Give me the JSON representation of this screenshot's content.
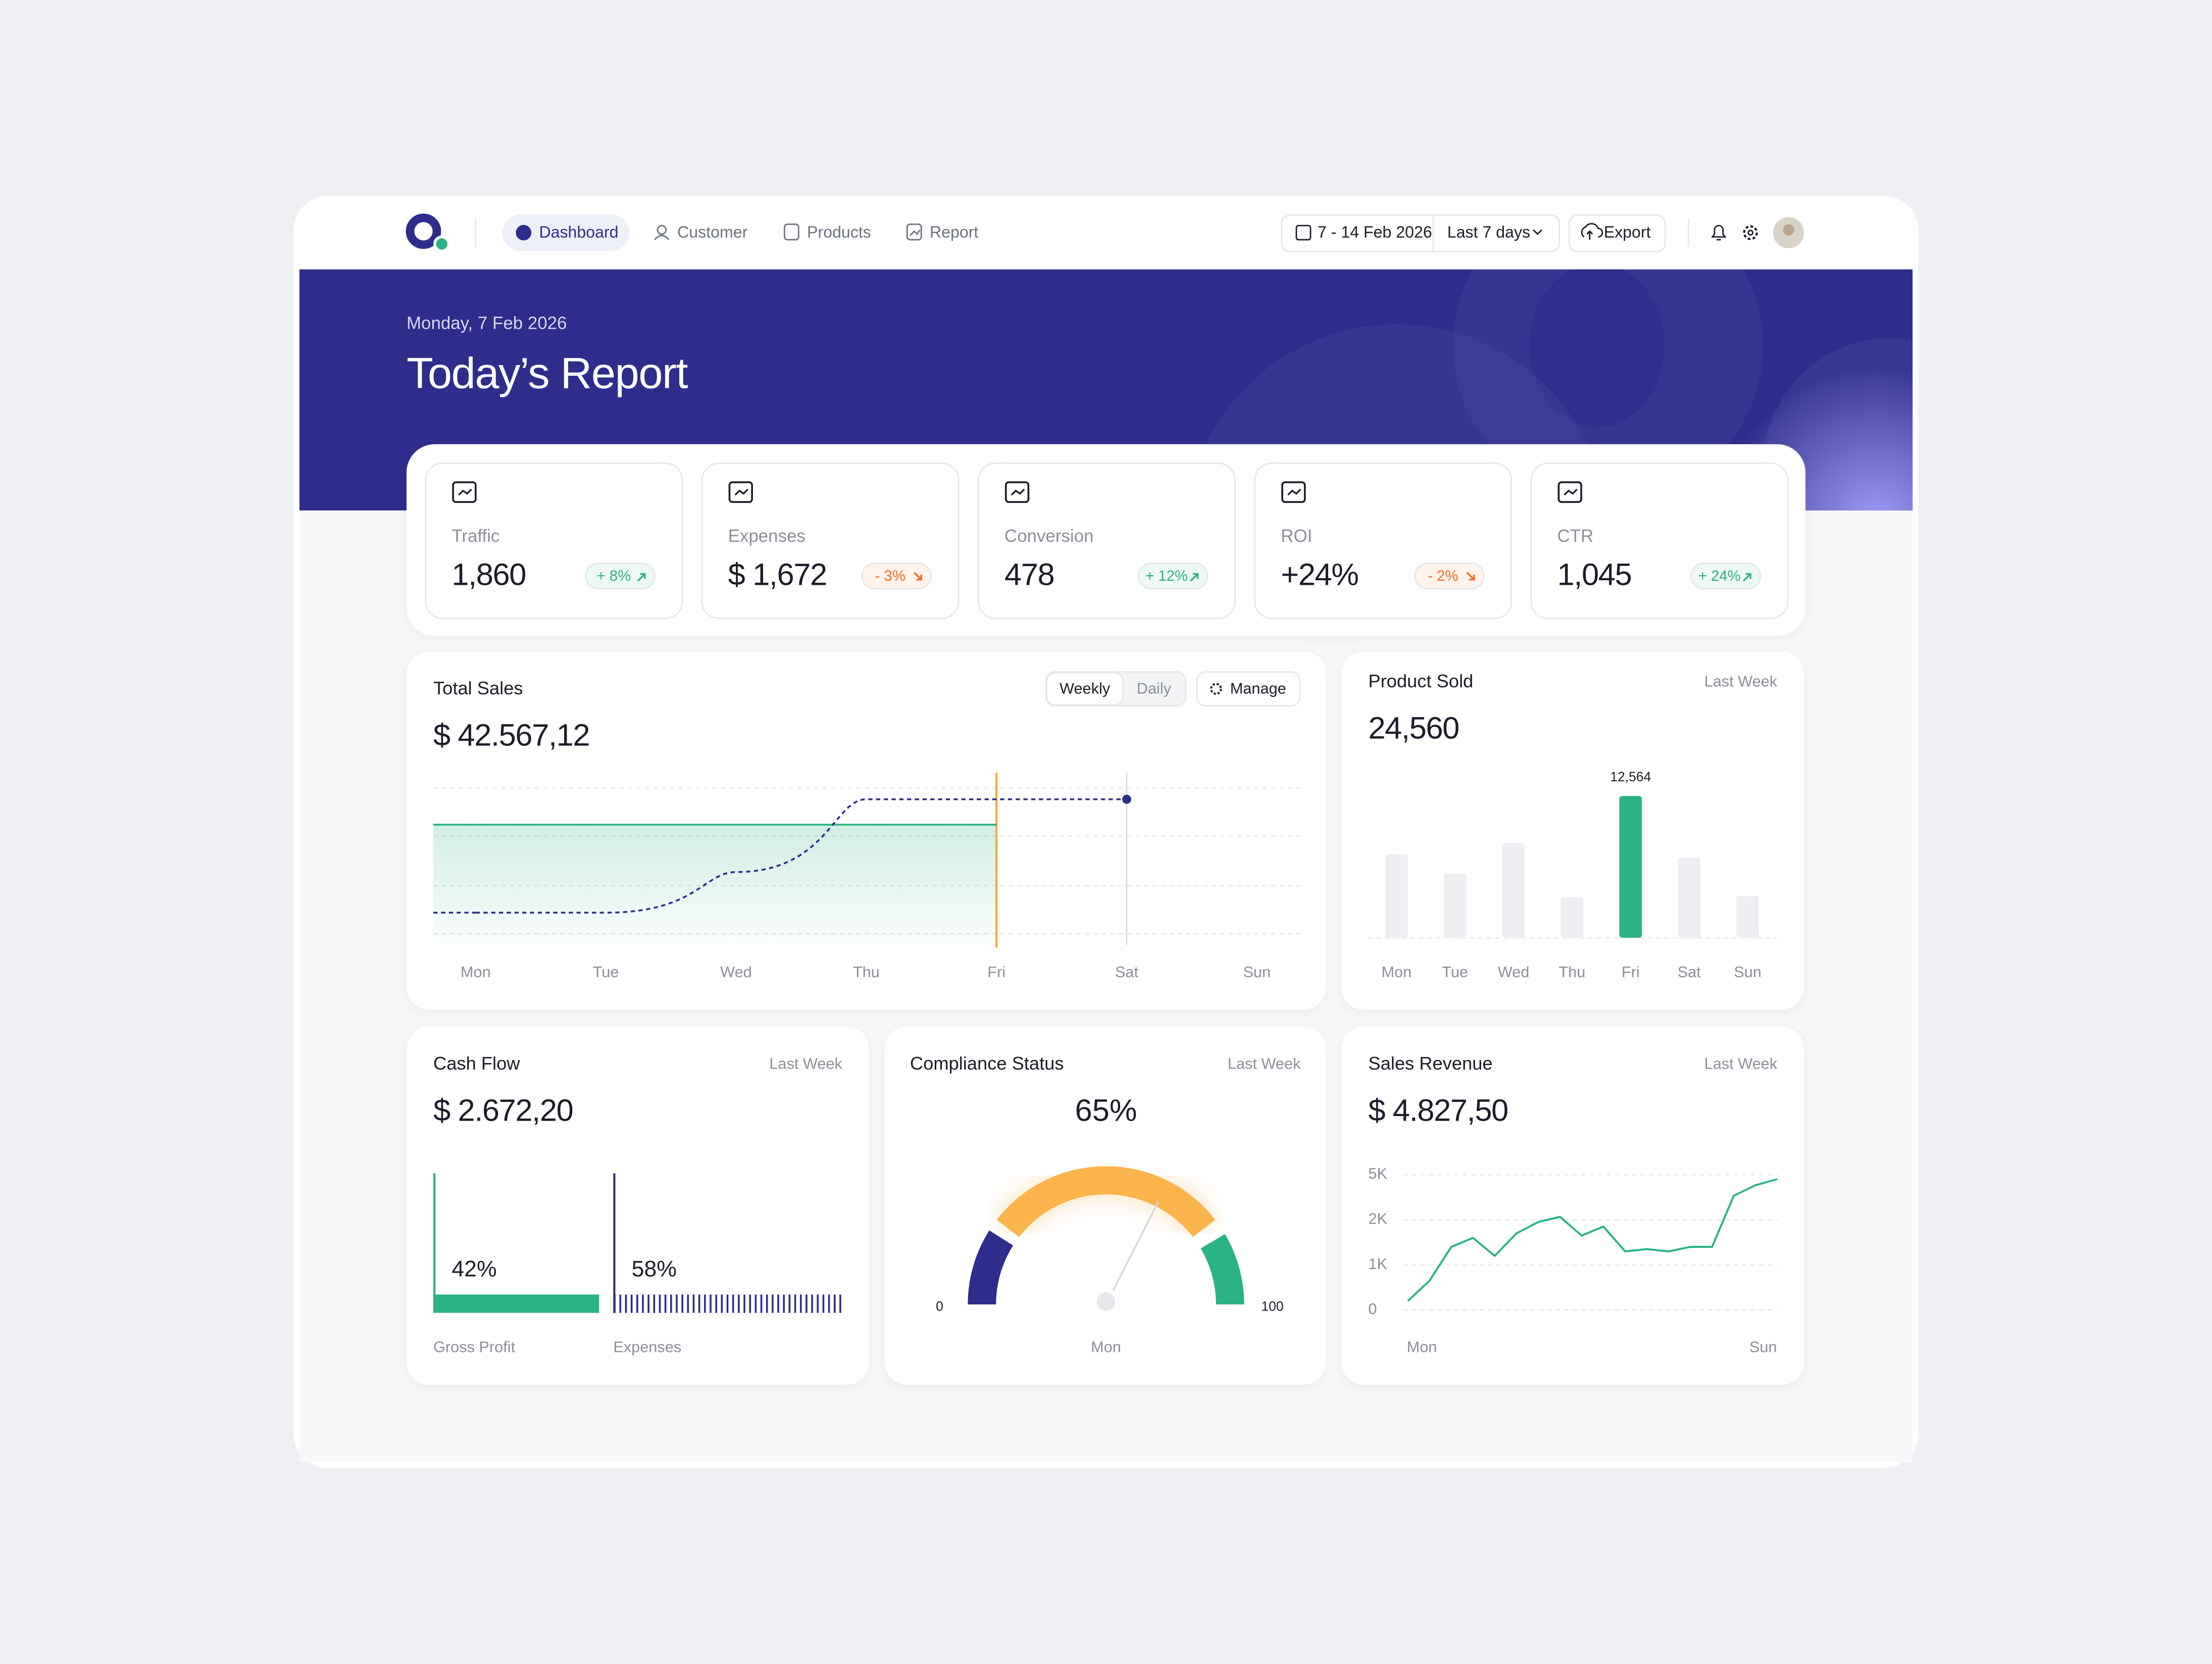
{
  "nav": {
    "items": [
      "Dashboard",
      "Customer",
      "Products",
      "Report"
    ],
    "date_range": "7 - 14 Feb 2026",
    "period": "Last 7 days",
    "export": "Export"
  },
  "header": {
    "date": "Monday, 7 Feb 2026",
    "title": "Today’s Report"
  },
  "kpis": [
    {
      "label": "Traffic",
      "value": "1,860",
      "change": "+ 8%",
      "trend": "up"
    },
    {
      "label": "Expenses",
      "value": "$ 1,672",
      "change": "- 3%",
      "trend": "down"
    },
    {
      "label": "Conversion",
      "value": "478",
      "change": "+ 12%",
      "trend": "up"
    },
    {
      "label": "ROI",
      "value": "+24%",
      "change": "- 2%",
      "trend": "down"
    },
    {
      "label": "CTR",
      "value": "1,045",
      "change": "+ 24%",
      "trend": "up"
    }
  ],
  "total_sales": {
    "title": "Total Sales",
    "value": "$ 42.567,12",
    "tabs": [
      "Weekly",
      "Daily"
    ],
    "manage": "Manage",
    "chart": {
      "type": "line",
      "categories": [
        "Mon",
        "Tue",
        "Wed",
        "Thu",
        "Fri",
        "Sat",
        "Sun"
      ],
      "ylim": [
        0,
        100
      ],
      "series": [
        {
          "color": "#2bb383",
          "values": [
            71,
            71,
            71,
            71,
            71,
            null,
            null
          ],
          "area": true,
          "curve": "linear",
          "style": "solid"
        },
        {
          "color": "#2e2d8c",
          "values": [
            19,
            19,
            43,
            86,
            86,
            86,
            null
          ],
          "area": false,
          "curve": "step",
          "style": "dashed",
          "end_marker": true
        }
      ]
    }
  },
  "product_sold": {
    "title": "Product Sold",
    "period": "Last Week",
    "value": "24,560",
    "chart": {
      "type": "bar",
      "categories": [
        "Mon",
        "Tue",
        "Wed",
        "Thu",
        "Fri",
        "Sat",
        "Sun"
      ],
      "values": [
        7400,
        5700,
        8400,
        3600,
        12564,
        7100,
        3700
      ],
      "value_labels": [
        null,
        null,
        null,
        null,
        "12,564",
        null,
        null
      ],
      "colors": [
        "#eeeff3",
        "#eeeff3",
        "#eeeff3",
        "#eeeff3",
        "#2bb383",
        "#eeeff3",
        "#eeeff3"
      ],
      "ylim": [
        0,
        14000
      ]
    }
  },
  "cash_flow": {
    "title": "Cash Flow",
    "period": "Last Week",
    "value": "$ 2.672,20",
    "chart": {
      "type": "split-bar",
      "categories": [
        "Gross Profit",
        "Expenses"
      ],
      "values": [
        42,
        58
      ],
      "value_labels": [
        "42%",
        "58%"
      ],
      "colors": [
        "#2bb383",
        "#2e2d8c"
      ],
      "styles": [
        "solid",
        "hatched"
      ],
      "xlim": [
        0,
        100
      ]
    }
  },
  "compliance": {
    "title": "Compliance Status",
    "period": "Last Week",
    "chart": {
      "type": "gauge",
      "value": 65,
      "value_label": "65%",
      "category": "Mon",
      "xlim": [
        0,
        100
      ],
      "xticks": [
        0,
        100
      ],
      "bands": [
        {
          "from": 0,
          "to": 18,
          "color": "#2e2d8c"
        },
        {
          "from": 21,
          "to": 79,
          "color": "#fbb34c"
        },
        {
          "from": 83,
          "to": 100,
          "color": "#2bb383"
        }
      ]
    }
  },
  "sales_revenue": {
    "title": "Sales Revenue",
    "period": "Last Week",
    "value": "$ 4.827,50",
    "chart": {
      "type": "line",
      "categories": [
        "Mon",
        null,
        null,
        null,
        null,
        null,
        null,
        null,
        null,
        null,
        null,
        null,
        null,
        null,
        null,
        null,
        null,
        "Sun"
      ],
      "ylim": [
        0,
        5000
      ],
      "yticks": [
        0,
        {
          "value": 1000,
          "label": "1K"
        },
        {
          "value": 2000,
          "label": "2K"
        },
        {
          "value": 5000,
          "label": "5K"
        }
      ],
      "ytick_spacing": "even",
      "grid": true,
      "series": [
        {
          "color": "#2bb383",
          "values": [
            200,
            650,
            1400,
            1600,
            1200,
            1700,
            1950,
            2200,
            1650,
            1850,
            1300,
            1350,
            1300,
            1400,
            1400,
            3600,
            4300,
            4700
          ]
        }
      ]
    }
  }
}
